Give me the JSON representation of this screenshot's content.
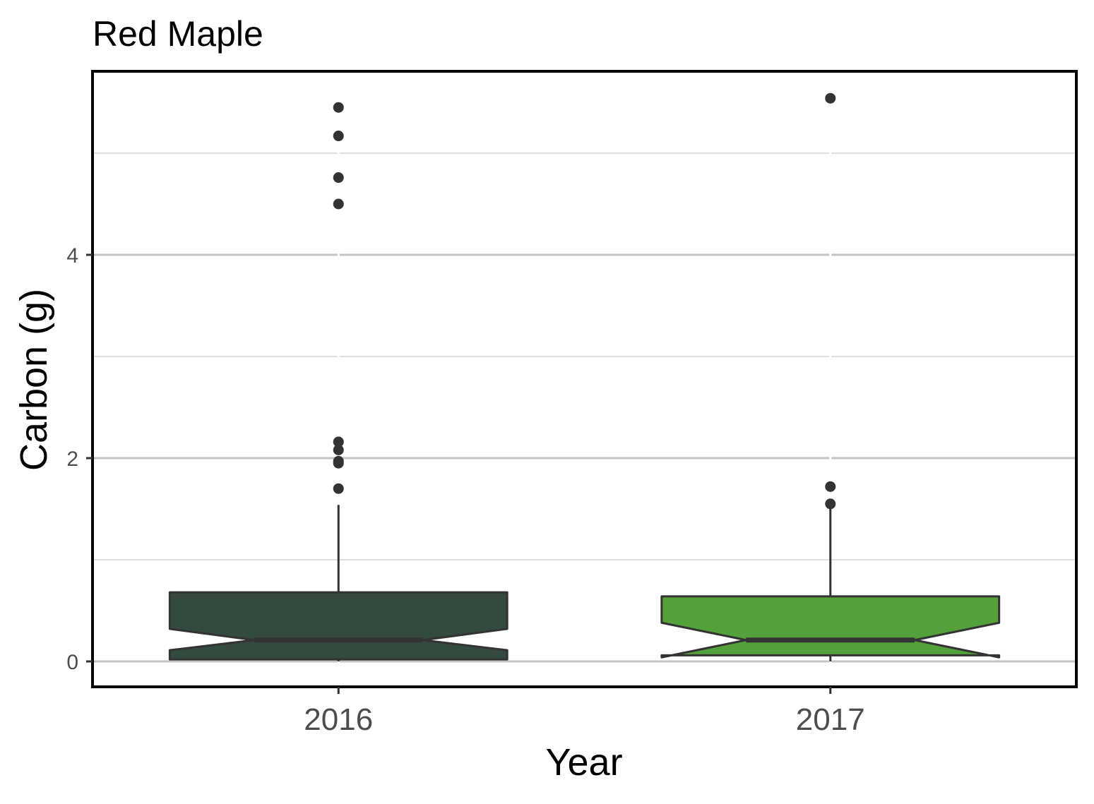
{
  "chart_data": {
    "type": "boxplot",
    "title": "Red Maple",
    "xlabel": "Year",
    "ylabel": "Carbon (g)",
    "categories": [
      "2016",
      "2017"
    ],
    "ylim": [
      -0.25,
      5.85
    ],
    "y_ticks": [
      0,
      2,
      4
    ],
    "y_tick_labels": [
      "0",
      "2",
      "4"
    ],
    "y_minor_grid": [
      1,
      3,
      5
    ],
    "notched": true,
    "grid": true,
    "legend": "none",
    "boxes": [
      {
        "category": "2016",
        "fill": "#344a3e",
        "q1": 0.02,
        "median": 0.21,
        "q3": 0.68,
        "notch_low": 0.11,
        "notch_high": 0.32,
        "whisker_low": 0.0,
        "whisker_high": 1.54,
        "outliers": [
          1.7,
          1.95,
          1.97,
          2.08,
          2.16,
          4.5,
          4.76,
          5.17,
          5.45
        ]
      },
      {
        "category": "2017",
        "fill": "#54a03a",
        "q1": 0.06,
        "median": 0.21,
        "q3": 0.64,
        "notch_low": 0.04,
        "notch_high": 0.38,
        "whisker_low": 0.0,
        "whisker_high": 1.54,
        "outliers": [
          1.55,
          1.72,
          5.54
        ]
      }
    ]
  }
}
